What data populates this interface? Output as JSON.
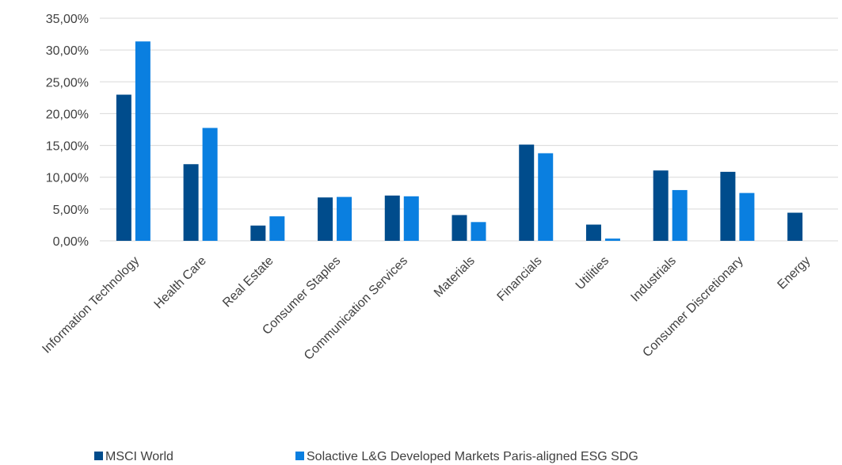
{
  "chart_data": {
    "type": "bar",
    "categories": [
      "Information Technology",
      "Health Care",
      "Real Estate",
      "Consumer Staples",
      "Communication Services",
      "Materials",
      "Financials",
      "Utilities",
      "Industrials",
      "Consumer Discretionary",
      "Energy"
    ],
    "series": [
      {
        "name": "MSCI World",
        "color": "#004C8C",
        "values": [
          22.98,
          12.05,
          2.4,
          6.82,
          7.12,
          4.05,
          15.13,
          2.55,
          11.06,
          10.85,
          4.42
        ]
      },
      {
        "name": "Solactive L&G Developed Markets Paris-aligned ESG SDG",
        "color": "#0A7FE0",
        "values": [
          31.35,
          17.75,
          3.85,
          6.9,
          7.0,
          2.95,
          13.77,
          0.35,
          7.98,
          7.52,
          0
        ]
      }
    ],
    "y_ticks": [
      "0,00%",
      "5,00%",
      "10,00%",
      "15,00%",
      "20,00%",
      "25,00%",
      "30,00%",
      "35,00%"
    ],
    "ylim": [
      0,
      35
    ],
    "y_step": 5,
    "grid": true,
    "legend_position": "bottom",
    "title": "",
    "xlabel": "",
    "ylabel": ""
  }
}
